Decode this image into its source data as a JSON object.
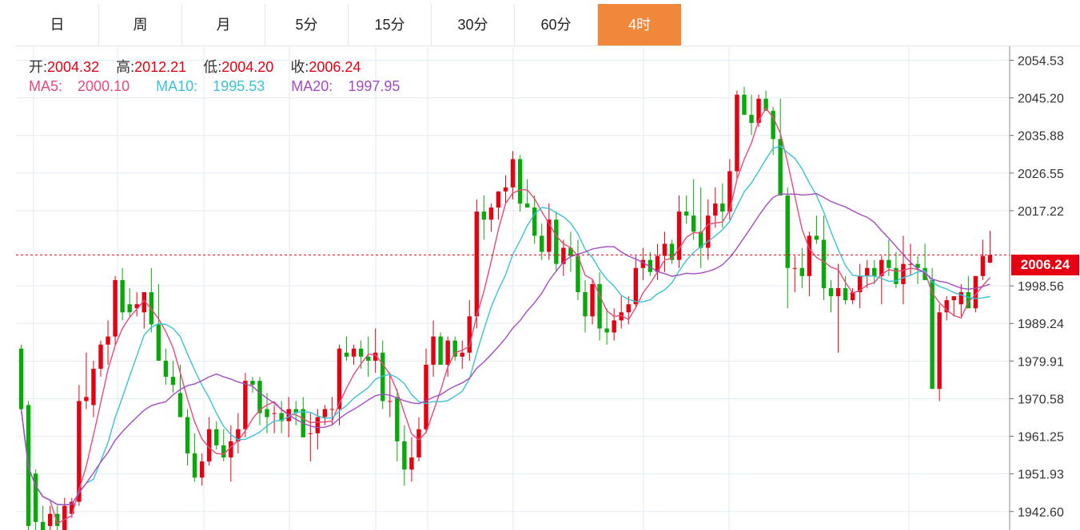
{
  "tabs": [
    {
      "label": "日",
      "active": false
    },
    {
      "label": "周",
      "active": false
    },
    {
      "label": "月",
      "active": false
    },
    {
      "label": "5分",
      "active": false
    },
    {
      "label": "15分",
      "active": false
    },
    {
      "label": "30分",
      "active": false
    },
    {
      "label": "60分",
      "active": false
    },
    {
      "label": "4时",
      "active": true
    }
  ],
  "ohlc_info": {
    "open_label": "开:",
    "open": "2004.32",
    "high_label": "高:",
    "high": "2012.21",
    "low_label": "低:",
    "low": "2004.20",
    "close_label": "收:",
    "close": "2006.24"
  },
  "ma_info": {
    "ma5_label": "MA5:",
    "ma5": "2000.10",
    "ma10_label": "MA10:",
    "ma10": "1995.53",
    "ma20_label": "MA20:",
    "ma20": "1997.95"
  },
  "colors": {
    "up": "#e50012",
    "down": "#0aa80a",
    "ma5": "#e84a7a",
    "ma10": "#39c2d7",
    "ma20": "#a44bc4",
    "active_tab": "#f0883b"
  },
  "chart_data": {
    "type": "candlestick",
    "y_ticks": [
      "2054.53",
      "2045.20",
      "2035.88",
      "2026.55",
      "2017.22",
      "1998.56",
      "1989.24",
      "1979.91",
      "1970.58",
      "1961.25",
      "1951.93",
      "1942.60"
    ],
    "ylim": [
      1938,
      2058
    ],
    "current_price": "2006.24",
    "grid": true,
    "candles": [
      [
        1983,
        1984,
        1967,
        1968
      ],
      [
        1969,
        1970,
        1938,
        1939
      ],
      [
        1952,
        1953,
        1938,
        1940
      ],
      [
        1940,
        1944,
        1937,
        1938
      ],
      [
        1939,
        1944,
        1936,
        1942
      ],
      [
        1942,
        1944,
        1938,
        1939
      ],
      [
        1938,
        1946,
        1937,
        1944
      ],
      [
        1942,
        1946,
        1941,
        1945
      ],
      [
        1945,
        1974,
        1944,
        1970
      ],
      [
        1970,
        1982,
        1968,
        1971
      ],
      [
        1969,
        1980,
        1966,
        1978
      ],
      [
        1978,
        1985,
        1976,
        1984
      ],
      [
        1984,
        1990,
        1979,
        1986
      ],
      [
        1986,
        2001,
        1984,
        2000
      ],
      [
        2000,
        2003,
        1990,
        1992
      ],
      [
        1994,
        1998,
        1991,
        1992
      ],
      [
        1993,
        1997,
        1991,
        1994
      ],
      [
        1992,
        1997,
        1988,
        1997
      ],
      [
        1997,
        2003,
        1987,
        1989
      ],
      [
        1989,
        1999,
        1980,
        1980
      ],
      [
        1980,
        1983,
        1974,
        1976
      ],
      [
        1976,
        1980,
        1972,
        1974
      ],
      [
        1972,
        1979,
        1967,
        1966
      ],
      [
        1966,
        1968,
        1954,
        1957
      ],
      [
        1957,
        1962,
        1950,
        1951
      ],
      [
        1951,
        1957,
        1949,
        1955
      ],
      [
        1955,
        1966,
        1954,
        1963
      ],
      [
        1963,
        1965,
        1958,
        1959
      ],
      [
        1959,
        1963,
        1955,
        1956
      ],
      [
        1956,
        1964,
        1950,
        1960
      ],
      [
        1960,
        1967,
        1957,
        1963
      ],
      [
        1963,
        1977,
        1961,
        1975
      ],
      [
        1975,
        1976,
        1972,
        1974
      ],
      [
        1975,
        1976,
        1964,
        1967
      ],
      [
        1968,
        1972,
        1962,
        1966
      ],
      [
        1967,
        1969,
        1962,
        1967
      ],
      [
        1967,
        1970,
        1962,
        1965
      ],
      [
        1965,
        1971,
        1961,
        1968
      ],
      [
        1968,
        1970,
        1964,
        1967
      ],
      [
        1968,
        1971,
        1961,
        1961
      ],
      [
        1962,
        1967,
        1955,
        1962
      ],
      [
        1962,
        1968,
        1958,
        1966
      ],
      [
        1966,
        1969,
        1964,
        1968
      ],
      [
        1968,
        1971,
        1964,
        1968
      ],
      [
        1968,
        1984,
        1964,
        1983
      ],
      [
        1982,
        1986,
        1980,
        1981
      ],
      [
        1981,
        1984,
        1979,
        1983
      ],
      [
        1983,
        1985,
        1978,
        1981
      ],
      [
        1981,
        1986,
        1976,
        1980
      ],
      [
        1980,
        1988,
        1977,
        1982
      ],
      [
        1982,
        1985,
        1968,
        1970
      ],
      [
        1970,
        1977,
        1966,
        1970
      ],
      [
        1971,
        1973,
        1955,
        1960
      ],
      [
        1960,
        1964,
        1949,
        1953
      ],
      [
        1953,
        1961,
        1950,
        1956
      ],
      [
        1956,
        1966,
        1955,
        1963
      ],
      [
        1963,
        1983,
        1962,
        1979
      ],
      [
        1979,
        1990,
        1976,
        1986
      ],
      [
        1986,
        1987,
        1979,
        1979
      ],
      [
        1979,
        1986,
        1976,
        1985
      ],
      [
        1985,
        1986,
        1980,
        1981
      ],
      [
        1981,
        1985,
        1978,
        1982
      ],
      [
        1982,
        1995,
        1980,
        1991
      ],
      [
        1991,
        2020,
        1988,
        2017
      ],
      [
        2017,
        2021,
        2010,
        2015
      ],
      [
        2015,
        2019,
        2012,
        2018
      ],
      [
        2018,
        2022,
        2015,
        2022
      ],
      [
        2022,
        2026,
        2019,
        2023
      ],
      [
        2023,
        2032,
        2020,
        2030
      ],
      [
        2030,
        2031,
        2017,
        2019
      ],
      [
        2019,
        2025,
        2018,
        2018
      ],
      [
        2018,
        2021,
        2009,
        2011
      ],
      [
        2011,
        2014,
        2005,
        2007
      ],
      [
        2007,
        2019,
        2005,
        2015
      ],
      [
        2015,
        2017,
        2002,
        2004
      ],
      [
        2004,
        2010,
        2001,
        2008
      ],
      [
        2008,
        2012,
        2002,
        2006
      ],
      [
        2006,
        2010,
        1995,
        1997
      ],
      [
        1997,
        2000,
        1987,
        1991
      ],
      [
        1991,
        2000,
        1989,
        1999
      ],
      [
        1999,
        2002,
        1985,
        1988
      ],
      [
        1988,
        1993,
        1984,
        1987
      ],
      [
        1987,
        1993,
        1985,
        1990
      ],
      [
        1990,
        1996,
        1988,
        1992
      ],
      [
        1992,
        1996,
        1989,
        1994
      ],
      [
        1994,
        2006,
        1993,
        2003
      ],
      [
        2003,
        2008,
        2000,
        2005
      ],
      [
        2005,
        2007,
        2001,
        2002
      ],
      [
        2002,
        2009,
        2000,
        2006
      ],
      [
        2006,
        2012,
        2002,
        2009
      ],
      [
        2009,
        2010,
        2004,
        2005
      ],
      [
        2005,
        2021,
        2003,
        2017
      ],
      [
        2017,
        2021,
        2014,
        2016
      ],
      [
        2016,
        2025,
        2010,
        2012
      ],
      [
        2012,
        2023,
        2003,
        2008
      ],
      [
        2008,
        2020,
        2005,
        2016
      ],
      [
        2016,
        2023,
        2013,
        2019
      ],
      [
        2019,
        2024,
        2013,
        2017
      ],
      [
        2017,
        2030,
        2015,
        2027
      ],
      [
        2027,
        2047,
        2025,
        2046
      ],
      [
        2046,
        2048,
        2042,
        2041
      ],
      [
        2041,
        2046,
        2036,
        2039
      ],
      [
        2039,
        2046,
        2038,
        2045
      ],
      [
        2045,
        2047,
        2042,
        2042
      ],
      [
        2042,
        2043,
        2031,
        2035
      ],
      [
        2035,
        2045,
        2022,
        2021
      ],
      [
        2021,
        2023,
        1993,
        2003
      ],
      [
        2003,
        2006,
        1997,
        2003
      ],
      [
        2003,
        2008,
        1998,
        2001
      ],
      [
        2001,
        2012,
        1996,
        2011
      ],
      [
        2011,
        2016,
        2009,
        2010
      ],
      [
        2010,
        2016,
        1995,
        1998
      ],
      [
        1998,
        2000,
        1992,
        1996
      ],
      [
        1996,
        2004,
        1982,
        1998
      ],
      [
        1998,
        2001,
        1994,
        1995
      ],
      [
        1995,
        1998,
        1994,
        1997
      ],
      [
        1997,
        2004,
        1993,
        2001
      ],
      [
        2001,
        2005,
        1998,
        2003
      ],
      [
        2003,
        2005,
        1999,
        2001
      ],
      [
        2001,
        2006,
        1994,
        2005
      ],
      [
        2005,
        2010,
        2001,
        2003
      ],
      [
        2003,
        2007,
        1998,
        1999
      ],
      [
        1999,
        2011,
        1994,
        2004
      ],
      [
        2004,
        2009,
        2001,
        2004
      ],
      [
        2004,
        2006,
        1999,
        2003
      ],
      [
        2003,
        2009,
        2001,
        2000
      ],
      [
        2000,
        2003,
        1974,
        1973
      ],
      [
        1973,
        1994,
        1970,
        1992
      ],
      [
        1992,
        1996,
        1990,
        1995
      ],
      [
        1995,
        1996,
        1991,
        1996
      ],
      [
        1994,
        1999,
        1991,
        1997
      ],
      [
        1997,
        2001,
        1993,
        1993
      ],
      [
        1993,
        2001,
        1992,
        2001
      ],
      [
        2001,
        2010,
        2000,
        2006
      ],
      [
        2004.32,
        2012.21,
        2004.2,
        2006.24
      ]
    ]
  }
}
